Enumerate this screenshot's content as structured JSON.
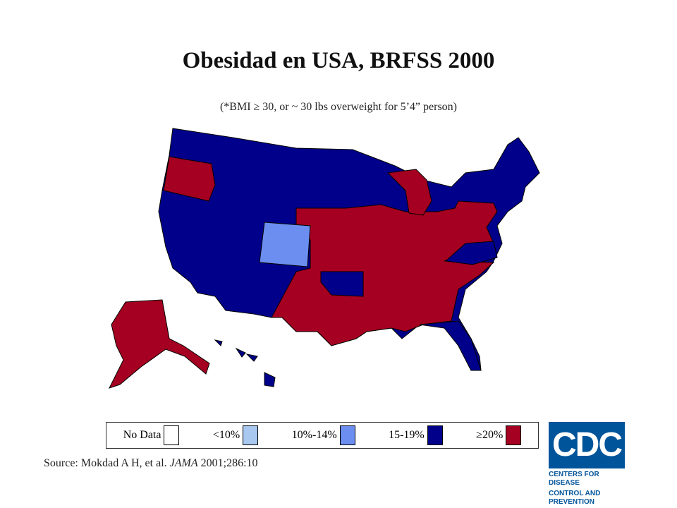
{
  "header": {
    "title": "Obesidad en USA, BRFSS 2000",
    "subtitle": "(*BMI ≥ 30, or ~ 30 lbs overweight for 5’4” person)"
  },
  "legend": {
    "items": [
      {
        "label": "No Data",
        "color": "#ffffff"
      },
      {
        "label": "<10%",
        "color": "#a8c8f0"
      },
      {
        "label": "10%-14%",
        "color": "#6b8ef0"
      },
      {
        "label": "15-19%",
        "color": "#00008b"
      },
      {
        "label": "≥20%",
        "color": "#a50021"
      }
    ]
  },
  "source": {
    "prefix": "Source: Mokdad A H, et al.",
    "journal": "JAMA",
    "suffix": "2001;286:10"
  },
  "logo": {
    "mark": "CDC",
    "line1": "Centers for Disease",
    "line2": "Control and Prevention"
  }
}
